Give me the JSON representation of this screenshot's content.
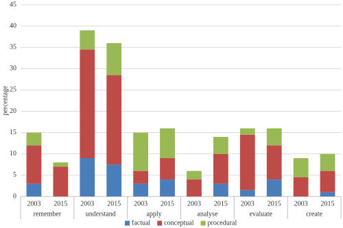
{
  "chart_data": {
    "type": "stacked_bar",
    "y_label": "percentage",
    "categories": [
      "2003",
      "2015",
      "2003",
      "2015",
      "2003",
      "2015",
      "2003",
      "2015",
      "2003",
      "2015",
      "2003",
      "2015"
    ],
    "groups": [
      "remember",
      "understand",
      "apply",
      "analyse",
      "evaluate",
      "create"
    ],
    "series": [
      {
        "name": "factual",
        "color": "#4a7ebb",
        "values": [
          3,
          0,
          9,
          7.5,
          3,
          4,
          0,
          3,
          1.5,
          4,
          0,
          1
        ]
      },
      {
        "name": "conceptual",
        "color": "#be4b48",
        "values": [
          9,
          7,
          25.5,
          21,
          3,
          5,
          4,
          7,
          13,
          8,
          4.5,
          5
        ]
      },
      {
        "name": "procedural",
        "color": "#98b954",
        "values": [
          3,
          1,
          4.5,
          7.5,
          9,
          7,
          2,
          4,
          1.5,
          4,
          4.5,
          4
        ]
      }
    ],
    "ylim": [
      0,
      45
    ],
    "yticks": [
      0,
      5,
      10,
      15,
      20,
      25,
      30,
      35,
      40,
      45
    ],
    "grid": true,
    "legend": "bottom"
  }
}
